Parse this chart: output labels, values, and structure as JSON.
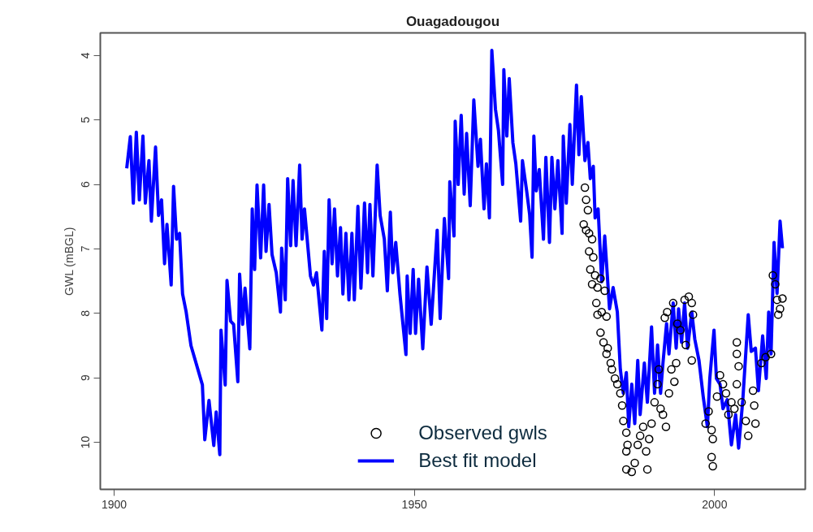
{
  "chart_data": {
    "type": "line",
    "title": "Ouagadougou",
    "ylabel": "GWL (mBGL)",
    "xlim": [
      1897.7,
      2015.1
    ],
    "xticks": [
      1900,
      1950,
      2000
    ],
    "ylim": [
      10.73,
      3.65
    ],
    "yticks": [
      4,
      5,
      6,
      7,
      8,
      9,
      10
    ],
    "grid": false,
    "legend": "bottom",
    "series": [
      {
        "name": "Observed gwls",
        "type": "scatter",
        "marker": "circle",
        "color": "#000000",
        "x": [
          1978.4,
          1978.6,
          1978.9,
          1978.2,
          1978.6,
          1979.1,
          1979.6,
          1979.1,
          1979.8,
          1979.3,
          1980.1,
          1979.6,
          1980.5,
          1981.0,
          1981.7,
          1980.3,
          1980.5,
          1981.2,
          1982.0,
          1981.0,
          1981.5,
          1982.2,
          1982.0,
          1982.7,
          1982.9,
          1983.4,
          1983.8,
          1984.3,
          1984.6,
          1984.8,
          1985.3,
          1985.5,
          1985.3,
          1985.3,
          1986.2,
          1986.7,
          1987.2,
          1987.6,
          1988.1,
          1988.6,
          1988.8,
          1989.1,
          1989.5,
          1990.0,
          1990.5,
          1990.7,
          1991.0,
          1991.4,
          1991.9,
          1992.4,
          1992.8,
          1993.3,
          1993.6,
          1991.7,
          1992.1,
          1993.1,
          1993.8,
          1994.3,
          1995.0,
          1995.7,
          1996.2,
          1996.4,
          1995.2,
          1996.2,
          1998.5,
          1999.0,
          1999.5,
          1999.7,
          1999.5,
          1999.7,
          2000.4,
          2000.9,
          2001.4,
          2001.9,
          2002.3,
          2002.8,
          2003.3,
          2003.7,
          2003.7,
          2004.0,
          2003.7,
          2004.5,
          2005.2,
          2005.6,
          2006.4,
          2006.6,
          2006.8,
          2007.8,
          2008.5,
          2009.4,
          2009.7,
          2010.1,
          2010.4,
          2010.9,
          2010.6,
          2011.3
        ],
        "values": [
          6.05,
          6.24,
          6.4,
          6.62,
          6.71,
          6.76,
          6.85,
          7.04,
          7.13,
          7.32,
          7.41,
          7.55,
          7.6,
          7.46,
          7.65,
          7.84,
          8.02,
          7.98,
          8.05,
          8.3,
          8.45,
          8.54,
          8.63,
          8.77,
          8.87,
          9.01,
          9.1,
          9.24,
          9.43,
          9.67,
          9.85,
          10.04,
          10.14,
          10.42,
          10.46,
          10.32,
          10.04,
          9.9,
          9.76,
          10.14,
          10.42,
          9.95,
          9.71,
          9.38,
          9.1,
          8.87,
          9.48,
          9.57,
          9.76,
          9.24,
          8.87,
          9.06,
          8.77,
          8.07,
          7.98,
          7.84,
          8.16,
          8.26,
          7.79,
          7.74,
          7.84,
          8.02,
          8.49,
          8.73,
          9.71,
          9.52,
          9.81,
          9.95,
          10.23,
          10.37,
          9.29,
          8.96,
          9.1,
          9.24,
          9.57,
          9.38,
          9.48,
          8.45,
          8.63,
          8.82,
          9.1,
          9.38,
          9.67,
          9.9,
          9.2,
          9.43,
          9.71,
          8.77,
          8.68,
          8.63,
          7.41,
          7.55,
          7.79,
          7.93,
          8.02,
          7.77
        ]
      },
      {
        "name": "Best fit model",
        "line_style": "solid",
        "color": "#0000ff",
        "x": [
          1902.1,
          1902.7,
          1903.2,
          1903.7,
          1904.2,
          1904.8,
          1905.2,
          1905.8,
          1906.2,
          1906.9,
          1907.4,
          1907.9,
          1908.4,
          1908.8,
          1909.5,
          1909.9,
          1910.4,
          1910.9,
          1911.4,
          1912.0,
          1912.8,
          1914.7,
          1915.1,
          1915.8,
          1916.6,
          1917.0,
          1917.6,
          1917.8,
          1918.5,
          1918.8,
          1919.4,
          1919.9,
          1920.6,
          1920.9,
          1921.4,
          1921.8,
          1922.6,
          1923.0,
          1923.4,
          1923.8,
          1924.4,
          1924.9,
          1925.3,
          1925.8,
          1926.3,
          1927.0,
          1927.7,
          1927.9,
          1928.5,
          1928.9,
          1929.4,
          1929.8,
          1930.3,
          1930.9,
          1931.3,
          1931.7,
          1932.7,
          1933.2,
          1933.7,
          1934.6,
          1935.0,
          1935.4,
          1935.8,
          1936.3,
          1936.7,
          1937.2,
          1937.7,
          1938.1,
          1938.6,
          1939.1,
          1939.6,
          1940.0,
          1940.6,
          1941.1,
          1941.7,
          1942.2,
          1942.6,
          1943.1,
          1943.8,
          1944.3,
          1945.0,
          1945.5,
          1946.0,
          1946.4,
          1946.9,
          1947.6,
          1948.1,
          1948.6,
          1948.8,
          1949.3,
          1949.8,
          1950.2,
          1950.7,
          1951.4,
          1952.1,
          1952.8,
          1953.8,
          1954.3,
          1955.0,
          1955.7,
          1955.9,
          1956.6,
          1956.8,
          1957.3,
          1957.8,
          1958.3,
          1958.7,
          1959.3,
          1959.9,
          1960.6,
          1961.0,
          1961.6,
          1962.0,
          1962.5,
          1962.9,
          1963.5,
          1964.0,
          1964.7,
          1964.9,
          1965.4,
          1965.8,
          1966.4,
          1966.9,
          1967.7,
          1968.0,
          1968.7,
          1969.2,
          1969.6,
          1969.9,
          1970.3,
          1970.8,
          1971.5,
          1971.9,
          1972.5,
          1972.9,
          1973.4,
          1973.9,
          1974.6,
          1974.8,
          1975.3,
          1975.9,
          1976.3,
          1977.0,
          1977.4,
          1977.8,
          1978.4,
          1978.9,
          1979.3,
          1979.8,
          1980.1,
          1980.6,
          1981.2,
          1981.7,
          1982.5,
          1983.1,
          1983.8,
          1984.3,
          1984.8,
          1985.3,
          1985.7,
          1986.2,
          1986.7,
          1987.2,
          1987.6,
          1988.3,
          1988.8,
          1989.5,
          1990.0,
          1990.5,
          1991.0,
          1991.4,
          1992.0,
          1992.4,
          1993.1,
          1993.6,
          1994.0,
          1994.5,
          1995.0,
          1995.5,
          1996.2,
          1996.7,
          1997.4,
          1998.1,
          1998.8,
          1999.2,
          1999.9,
          2000.3,
          2000.9,
          2001.4,
          2002.1,
          2002.8,
          2003.5,
          2004.0,
          2004.7,
          2005.6,
          2006.1,
          2006.8,
          2007.3,
          2008.0,
          2008.6,
          2009.0,
          2009.4,
          2009.9,
          2010.4,
          2010.9,
          2011.3
        ],
        "values": [
          5.75,
          5.26,
          6.29,
          5.19,
          6.24,
          5.25,
          6.29,
          5.63,
          6.57,
          5.42,
          6.48,
          6.24,
          7.23,
          6.62,
          7.56,
          6.03,
          6.85,
          6.76,
          7.7,
          7.98,
          8.5,
          9.11,
          9.96,
          9.35,
          10.05,
          9.53,
          10.19,
          8.26,
          9.11,
          7.49,
          8.12,
          8.17,
          9.06,
          7.39,
          8.17,
          7.61,
          8.55,
          6.38,
          7.32,
          6.01,
          7.14,
          6.01,
          7.04,
          6.31,
          7.09,
          7.37,
          7.98,
          6.99,
          7.79,
          5.91,
          6.95,
          5.94,
          6.95,
          5.7,
          6.85,
          6.38,
          7.42,
          7.56,
          7.37,
          8.26,
          7.04,
          8.08,
          6.24,
          7.23,
          6.38,
          7.42,
          6.67,
          7.7,
          6.76,
          7.79,
          6.76,
          7.79,
          6.34,
          7.61,
          6.29,
          7.37,
          6.31,
          7.42,
          5.7,
          6.48,
          6.85,
          7.65,
          6.43,
          7.37,
          6.9,
          7.7,
          8.17,
          8.64,
          7.42,
          8.31,
          7.32,
          8.31,
          7.47,
          8.55,
          7.28,
          8.17,
          6.71,
          8.08,
          6.53,
          7.46,
          5.96,
          6.8,
          5.02,
          6.0,
          4.93,
          6.15,
          5.21,
          6.33,
          4.69,
          5.72,
          5.3,
          6.38,
          5.68,
          6.52,
          3.92,
          4.83,
          5.16,
          6.0,
          4.22,
          5.25,
          4.36,
          5.35,
          5.68,
          6.57,
          5.63,
          6.1,
          6.47,
          7.13,
          5.25,
          6.1,
          5.77,
          6.85,
          5.58,
          6.9,
          5.58,
          6.38,
          5.63,
          6.76,
          5.25,
          6.29,
          5.07,
          6.0,
          4.46,
          5.54,
          4.64,
          5.63,
          5.35,
          5.91,
          5.72,
          6.52,
          6.38,
          7.51,
          6.8,
          7.93,
          7.6,
          7.98,
          8.87,
          9.24,
          8.92,
          9.76,
          9.1,
          9.71,
          8.73,
          9.57,
          8.77,
          9.38,
          8.21,
          9.24,
          8.49,
          9.24,
          8.77,
          8.16,
          8.63,
          7.84,
          8.54,
          7.93,
          8.45,
          7.84,
          8.54,
          7.98,
          8.4,
          8.73,
          9.29,
          9.76,
          9.01,
          8.26,
          9.01,
          9.1,
          9.48,
          9.34,
          10.04,
          9.57,
          10.09,
          9.34,
          8.02,
          8.59,
          8.54,
          9.2,
          8.35,
          9.01,
          7.98,
          8.63,
          6.9,
          7.69,
          6.57,
          6.99
        ]
      }
    ]
  }
}
